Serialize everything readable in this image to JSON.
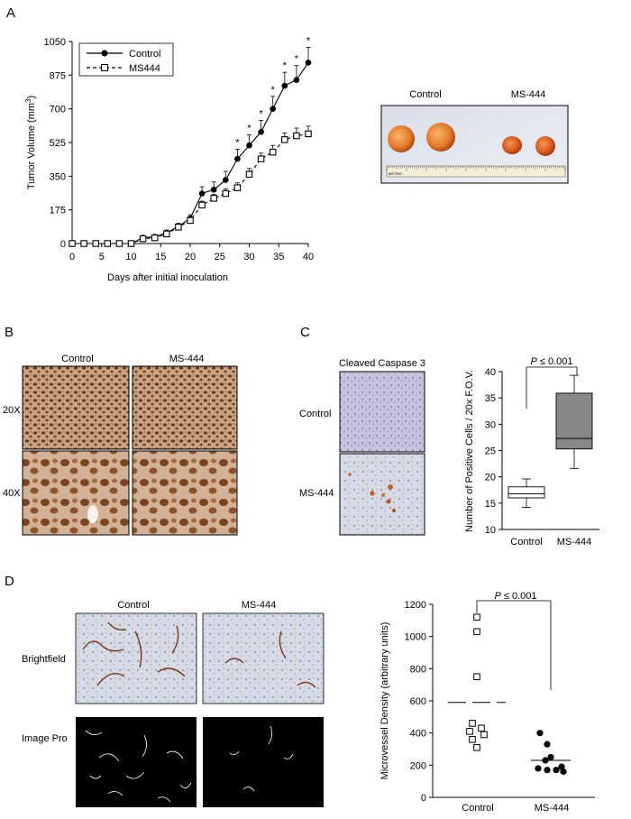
{
  "panels": {
    "A": {
      "letter": "A",
      "photo_labels": [
        "Control",
        "MS-444"
      ],
      "ruler_text": "METRIC"
    },
    "B": {
      "letter": "B",
      "col_labels": [
        "Control",
        "MS-444"
      ],
      "row_labels": [
        "20X",
        "40X"
      ]
    },
    "C": {
      "letter": "C",
      "stain_title": "Cleaved Caspase 3",
      "row_labels": [
        "Control",
        "MS-444"
      ],
      "p_label": "P ≤ 0.001"
    },
    "D": {
      "letter": "D",
      "col_labels": [
        "Control",
        "MS-444"
      ],
      "row_labels": [
        "Brightfield",
        "Image Pro"
      ],
      "p_label": "P ≤ 0.001"
    }
  },
  "chart_data": [
    {
      "id": "tumor_volume",
      "type": "line",
      "xlabel": "Days after initial inoculation",
      "ylabel": "Tumor Volume (mm3)",
      "xlim": [
        0,
        40
      ],
      "ylim": [
        0,
        1050
      ],
      "xticks": [
        0,
        5,
        10,
        15,
        20,
        25,
        30,
        35,
        40
      ],
      "yticks": [
        0,
        175,
        350,
        525,
        700,
        875,
        1050
      ],
      "legend": "top-left",
      "x": [
        0,
        2,
        4,
        6,
        8,
        10,
        12,
        14,
        16,
        18,
        20,
        22,
        24,
        26,
        28,
        30,
        32,
        34,
        36,
        38,
        40
      ],
      "series": [
        {
          "name": "Control",
          "marker": "filled-circle",
          "line": "solid",
          "values": [
            0,
            0,
            0,
            0,
            0,
            0,
            30,
            35,
            55,
            90,
            130,
            260,
            280,
            330,
            440,
            510,
            580,
            700,
            820,
            850,
            940
          ],
          "errors": [
            0,
            0,
            0,
            0,
            0,
            0,
            10,
            10,
            15,
            15,
            20,
            35,
            40,
            45,
            50,
            55,
            60,
            65,
            70,
            75,
            80
          ],
          "significant": [
            false,
            false,
            false,
            false,
            false,
            false,
            false,
            false,
            false,
            false,
            false,
            false,
            false,
            false,
            true,
            true,
            true,
            true,
            true,
            true,
            true
          ]
        },
        {
          "name": "MS444",
          "marker": "open-square",
          "line": "dashed",
          "values": [
            0,
            0,
            0,
            0,
            0,
            0,
            25,
            30,
            50,
            85,
            120,
            200,
            235,
            260,
            290,
            360,
            440,
            475,
            540,
            560,
            570
          ],
          "errors": [
            0,
            0,
            0,
            0,
            0,
            0,
            5,
            5,
            10,
            10,
            15,
            20,
            20,
            25,
            25,
            30,
            30,
            35,
            35,
            40,
            40
          ]
        }
      ],
      "annotation_symbol": "*"
    },
    {
      "id": "cleaved_caspase_boxplot",
      "type": "box",
      "ylabel": "Number of Positive Cells / 20x F.O.V.",
      "ylim": [
        10,
        40
      ],
      "yticks": [
        10,
        15,
        20,
        25,
        30,
        35,
        40
      ],
      "categories": [
        "Control",
        "MS-444"
      ],
      "boxes": [
        {
          "name": "Control",
          "min": 14.2,
          "q1": 16.0,
          "median": 16.8,
          "q3": 18.1,
          "max": 19.6,
          "fill": "#ffffff"
        },
        {
          "name": "MS-444",
          "min": 21.6,
          "q1": 25.3,
          "median": 27.3,
          "q3": 35.9,
          "max": 39.3,
          "fill": "#888888"
        }
      ]
    },
    {
      "id": "microvessel_density",
      "type": "scatter",
      "ylabel": "Microvessel Density (arbitrary units)",
      "ylim": [
        0,
        1200
      ],
      "yticks": [
        0,
        200,
        400,
        600,
        800,
        1000,
        1200
      ],
      "categories": [
        "Control",
        "MS-444"
      ],
      "series": [
        {
          "name": "Control",
          "marker": "open-square",
          "mean": 590,
          "values": [
            1120,
            1030,
            750,
            460,
            430,
            410,
            390,
            360,
            310
          ]
        },
        {
          "name": "MS-444",
          "marker": "filled-circle",
          "mean": 230,
          "values": [
            400,
            330,
            250,
            230,
            190,
            180,
            170,
            170,
            160
          ]
        }
      ]
    }
  ]
}
